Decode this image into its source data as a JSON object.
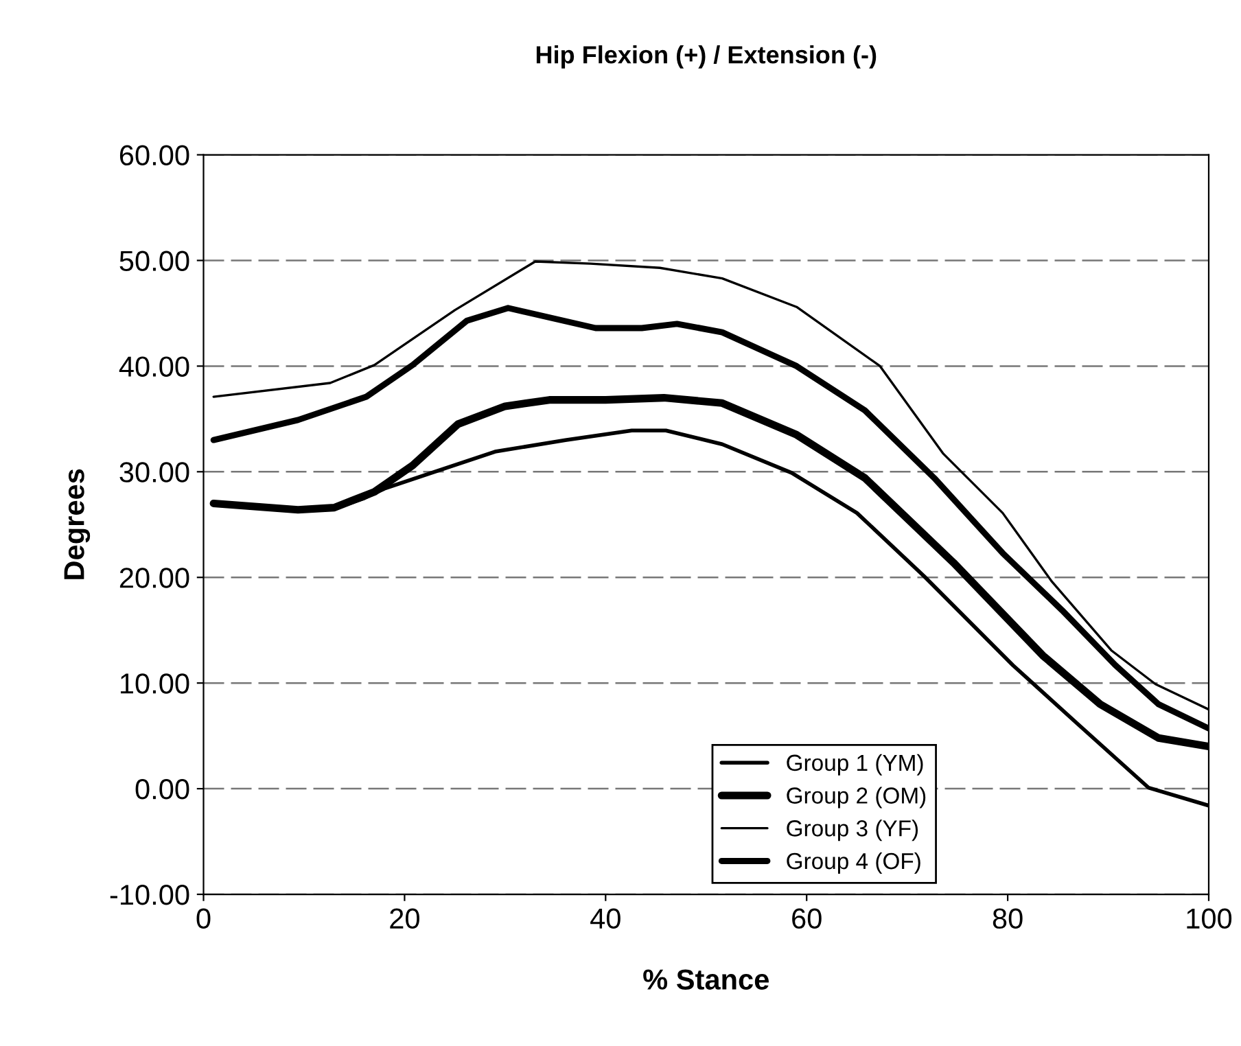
{
  "chart_data": {
    "type": "line",
    "title": "Hip Flexion (+) / Extension (-)",
    "xlabel": "% Stance",
    "ylabel": "Degrees",
    "xlim": [
      0,
      100
    ],
    "xticks": [
      0,
      20,
      40,
      60,
      80,
      100
    ],
    "ylim": [
      -10,
      60
    ],
    "yticks": [
      {
        "value": -10,
        "label": "-10.00"
      },
      {
        "value": 0,
        "label": "0.00"
      },
      {
        "value": 10,
        "label": "10.00"
      },
      {
        "value": 20,
        "label": "20.00"
      },
      {
        "value": 30,
        "label": "30.00"
      },
      {
        "value": 40,
        "label": "40.00"
      },
      {
        "value": 50,
        "label": "50.00"
      },
      {
        "value": 60,
        "label": "60.00"
      }
    ],
    "grid": "y",
    "legend": "bottom right",
    "marker": "none",
    "line_style": "solid",
    "series": [
      {
        "name": "Group 1 (YM)",
        "color": "#000000",
        "x": [
          1,
          9,
          13,
          16,
          18,
          23,
          29,
          36,
          42.6,
          46,
          51.6,
          58.5,
          65,
          71.7,
          80.5,
          87,
          94,
          100
        ],
        "values": [
          26.9,
          26.4,
          26.5,
          27.5,
          28.4,
          30,
          31.9,
          33,
          33.9,
          33.9,
          32.6,
          29.9,
          26.1,
          20.1,
          11.7,
          6.1,
          0.1,
          -1.6
        ]
      },
      {
        "name": "Group 2 (OM)",
        "color": "#000000",
        "x": [
          1,
          9.4,
          13,
          17,
          20.8,
          25.3,
          30,
          34.4,
          40,
          45.8,
          51.6,
          59,
          65.8,
          74.6,
          83.5,
          89.2,
          95,
          100
        ],
        "values": [
          27,
          26.4,
          26.6,
          28.1,
          30.6,
          34.5,
          36.2,
          36.8,
          36.8,
          37,
          36.5,
          33.5,
          29.4,
          21.4,
          12.6,
          8,
          4.8,
          4
        ]
      },
      {
        "name": "Group 3 (YF)",
        "color": "#000000",
        "x": [
          1,
          12.6,
          17,
          25,
          33,
          38.5,
          45.4,
          51.6,
          59,
          67.3,
          73.6,
          79.5,
          84.4,
          90.3,
          94.7,
          100
        ],
        "values": [
          37.1,
          38.4,
          40.1,
          45.3,
          49.9,
          49.7,
          49.3,
          48.3,
          45.6,
          40,
          31.7,
          26.1,
          19.6,
          13.1,
          9.9,
          7.5
        ]
      },
      {
        "name": "Group 4 (OF)",
        "color": "#000000",
        "x": [
          1,
          9.4,
          16.2,
          20.8,
          26.2,
          30.3,
          39,
          43.6,
          47.1,
          51.6,
          59,
          65.8,
          72.7,
          79.5,
          85.4,
          90.7,
          95,
          100
        ],
        "values": [
          33,
          34.9,
          37.1,
          40.1,
          44.3,
          45.5,
          43.6,
          43.6,
          44,
          43.2,
          40,
          35.8,
          29.4,
          22.3,
          16.9,
          11.7,
          8,
          5.7
        ]
      }
    ]
  }
}
